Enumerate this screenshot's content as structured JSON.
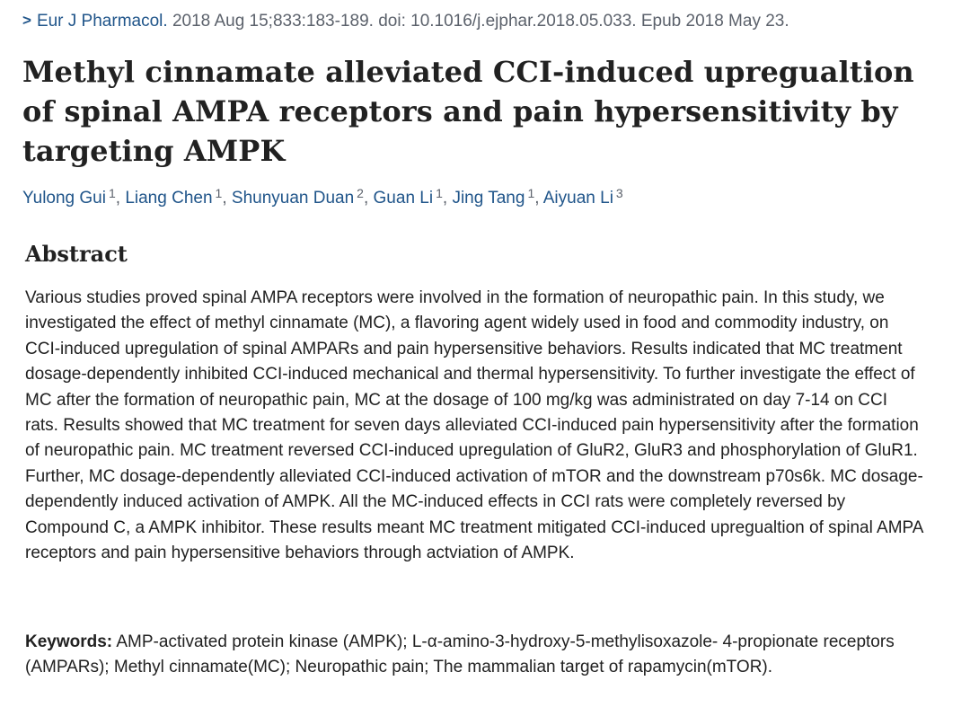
{
  "citation": {
    "chevron": ">",
    "journal": "Eur J Pharmacol.",
    "details": " 2018 Aug 15;833:183-189. doi: 10.1016/j.ejphar.2018.05.033. Epub 2018 May 23."
  },
  "title": "Methyl cinnamate alleviated CCI-induced upregualtion of spinal AMPA receptors and pain hypersensitivity by targeting AMPK",
  "authors": [
    {
      "name": "Yulong Gui",
      "aff": "1"
    },
    {
      "name": "Liang Chen",
      "aff": "1"
    },
    {
      "name": "Shunyuan Duan",
      "aff": "2"
    },
    {
      "name": "Guan Li",
      "aff": "1"
    },
    {
      "name": "Jing Tang",
      "aff": "1"
    },
    {
      "name": "Aiyuan Li",
      "aff": "3"
    }
  ],
  "separator": ", ",
  "abstract": {
    "heading": "Abstract",
    "text": "Various studies proved spinal AMPA receptors were involved in the formation of neuropathic pain. In this study, we investigated the effect of methyl cinnamate (MC), a flavoring agent widely used in food and commodity industry, on CCI-induced upregulation of spinal AMPARs and pain hypersensitive behaviors. Results indicated that MC treatment dosage-dependently inhibited CCI-induced mechanical and thermal hypersensitivity. To further investigate the effect of MC after the formation of neuropathic pain, MC at the dosage of 100 mg/kg was administrated on day 7-14 on CCI rats. Results showed that MC treatment for seven days alleviated CCI-induced pain hypersensitivity after the formation of neuropathic pain. MC treatment reversed CCI-induced upregulation of GluR2, GluR3 and phosphorylation of GluR1. Further, MC dosage-dependently alleviated CCI-induced activation of mTOR and the downstream p70s6k. MC dosage-dependently induced activation of AMPK. All the MC-induced effects in CCI rats were completely reversed by Compound C, a AMPK inhibitor. These results meant MC treatment mitigated CCI-induced upregualtion of spinal AMPA receptors and pain hypersensitive behaviors through actviation of AMPK."
  },
  "keywords": {
    "label": "Keywords:",
    "text": " AMP-activated protein kinase (AMPK); L-α-amino-3-hydroxy-5-methylisoxazole- 4-propionate receptors (AMPARs); Methyl cinnamate(MC); Neuropathic pain; The mammalian target of rapamycin(mTOR)."
  },
  "colors": {
    "link": "#20558a",
    "muted": "#5b616b",
    "text": "#212121"
  }
}
